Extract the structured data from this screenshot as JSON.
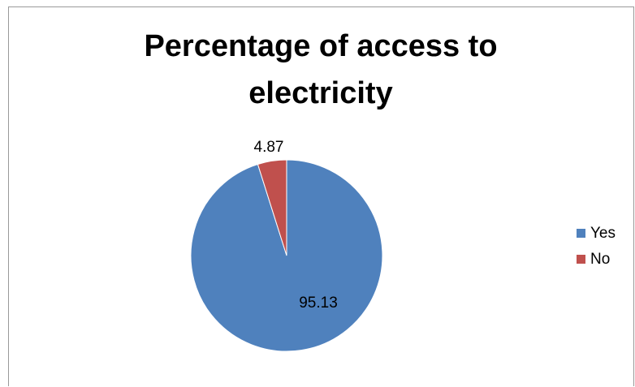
{
  "chart_data": {
    "type": "pie",
    "title_lines": [
      "Percentage of access to",
      "electricity"
    ],
    "categories": [
      "Yes",
      "No"
    ],
    "values": [
      95.13,
      4.87
    ],
    "data_labels": [
      "95.13",
      "4.87"
    ],
    "colors": [
      "#4f81bd",
      "#c0504d"
    ],
    "legend_position": "right"
  }
}
